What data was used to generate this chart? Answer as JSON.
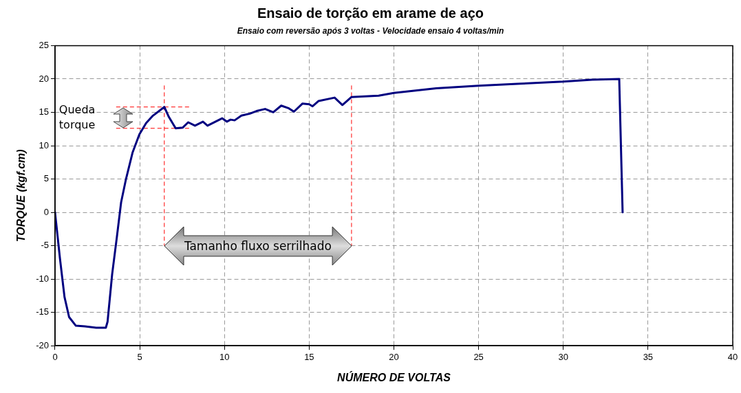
{
  "chart_data": {
    "type": "line",
    "title": "Ensaio de torção em arame de aço",
    "subtitle": "Ensaio com reversão após 3 voltas - Velocidade ensaio 4 voltas/min",
    "xlabel": "NÚMERO DE VOLTAS",
    "ylabel": "TORQUE (kgf.cm)",
    "x": [
      0,
      0.29,
      0.56,
      0.83,
      1.23,
      1.76,
      2.43,
      3.0,
      3.1,
      3.37,
      3.64,
      3.9,
      4.18,
      4.58,
      4.98,
      5.38,
      5.78,
      6.45,
      6.72,
      7.12,
      7.53,
      7.86,
      8.26,
      8.73,
      9.0,
      9.87,
      10.14,
      10.36,
      10.6,
      11.0,
      11.5,
      11.9,
      12.4,
      12.88,
      13.35,
      13.8,
      14.1,
      14.6,
      15.0,
      15.2,
      15.56,
      16.5,
      16.96,
      17.5,
      19.1,
      20,
      22.5,
      25,
      27.5,
      30,
      31.7,
      33.3,
      33.5
    ],
    "series": [
      {
        "color": "#000080",
        "values": [
          0,
          -6.9,
          -12.7,
          -15.7,
          -17.0,
          -17.1,
          -17.3,
          -17.3,
          -16.4,
          -9.3,
          -3.9,
          1.5,
          4.9,
          9.0,
          11.7,
          13.4,
          14.5,
          15.8,
          14.3,
          12.6,
          12.7,
          13.5,
          13.0,
          13.6,
          13.0,
          14.1,
          13.6,
          13.9,
          13.8,
          14.5,
          14.8,
          15.2,
          15.5,
          15.0,
          16.0,
          15.6,
          15.1,
          16.3,
          16.2,
          15.9,
          16.7,
          17.2,
          16.1,
          17.3,
          17.5,
          17.9,
          18.6,
          19.0,
          19.3,
          19.6,
          19.9,
          20.0,
          0
        ]
      }
    ],
    "xlim": [
      0,
      40
    ],
    "xticks": [
      0,
      5,
      10,
      15,
      20,
      25,
      30,
      35,
      40
    ],
    "ylim": [
      -20,
      25
    ],
    "yticks": [
      -20,
      -15,
      -10,
      -5,
      0,
      5,
      10,
      15,
      20,
      25
    ],
    "grid": true,
    "legend": false,
    "marker": "none",
    "line_style": "solid",
    "ref_lines": [
      {
        "axis": "y",
        "value": 15.8,
        "color": "#ff0000",
        "line_style": "dashed"
      },
      {
        "axis": "y",
        "value": 12.6,
        "color": "#ff0000",
        "line_style": "dashed"
      },
      {
        "axis": "x",
        "value": 6.45,
        "color": "#ff0000",
        "line_style": "dashed"
      },
      {
        "axis": "x",
        "value": 17.5,
        "color": "#ff0000",
        "line_style": "dashed"
      }
    ],
    "annotations": [
      "Queda torque",
      "Tamanho fluxo serrilhado"
    ]
  }
}
